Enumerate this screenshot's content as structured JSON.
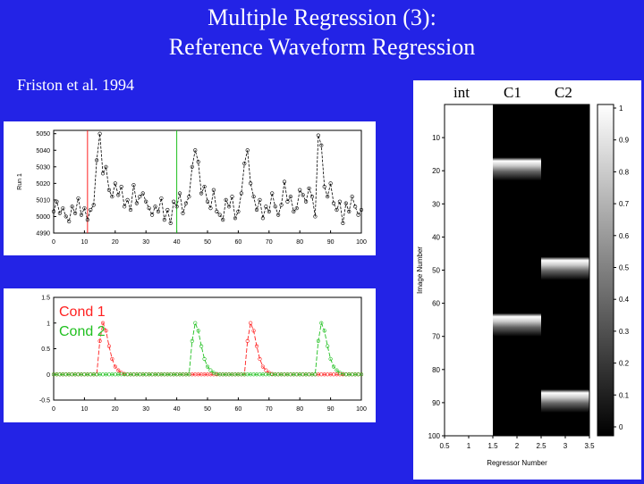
{
  "slide": {
    "title_line1": "Multiple Regression (3):",
    "title_line2": "Reference Waveform Regression",
    "citation": "Friston et al. 1994",
    "colors": {
      "background": "#2323e6",
      "text": "#ffffff",
      "cond1": "#ff2020",
      "cond2": "#20c020"
    }
  },
  "design_matrix": {
    "column_headers": [
      "int",
      "C1",
      "C2"
    ]
  },
  "chart_data": [
    {
      "type": "line",
      "xlim": [
        0,
        100
      ],
      "ylim": [
        4990,
        5052
      ],
      "ylabel": "Run 1",
      "x_ticks": [
        "0",
        "10",
        "20",
        "30",
        "40",
        "50",
        "60",
        "70",
        "80",
        "90",
        "100"
      ],
      "y_ticks": [
        "4990",
        "5000",
        "5010",
        "5020",
        "5030",
        "5040",
        "5050"
      ],
      "vlines": [
        {
          "x": 11,
          "color": "#ff2020"
        },
        {
          "x": 40,
          "color": "#20c020"
        }
      ],
      "series": [
        {
          "values": [
            5003,
            5009,
            5002,
            5005,
            5000,
            4997,
            5006,
            5002,
            5011,
            5001,
            5005,
            4998,
            5004,
            5007,
            5034,
            5050,
            5026,
            5030,
            5016,
            5012,
            5020,
            5013,
            5018,
            5006,
            5010,
            5004,
            5019,
            5008,
            5012,
            5014,
            5009,
            5005,
            5001,
            5006,
            5003,
            5011,
            4998,
            5004,
            4996,
            5009,
            5006,
            5014,
            5002,
            5008,
            5012,
            5030,
            5040,
            5033,
            5014,
            5018,
            5009,
            5005,
            5016,
            5003,
            5001,
            4998,
            5010,
            5006,
            5012,
            4999,
            5003,
            5014,
            5032,
            5040,
            5020,
            5012,
            5004,
            5010,
            4999,
            5006,
            5003,
            5014,
            5006,
            5001,
            5007,
            5021,
            5009,
            5012,
            5003,
            5005,
            5016,
            5013,
            5009,
            5017,
            5012,
            5000,
            5049,
            5043,
            5018,
            5012,
            5020,
            5008,
            5004,
            5009,
            4996,
            5008,
            5003,
            5012,
            5006,
            5001,
            5004
          ]
        }
      ]
    },
    {
      "type": "line",
      "xlim": [
        0,
        100
      ],
      "ylim": [
        -0.5,
        1.5
      ],
      "x_ticks": [
        "0",
        "10",
        "20",
        "30",
        "40",
        "50",
        "60",
        "70",
        "80",
        "90",
        "100"
      ],
      "y_ticks": [
        "-0.5",
        "0",
        "0.5",
        "1",
        "1.5"
      ],
      "legend": [
        "Cond 1",
        "Cond 2"
      ],
      "series": [
        {
          "name": "Cond 1",
          "values": [
            0,
            0,
            0,
            0,
            0,
            0,
            0,
            0,
            0,
            0,
            0,
            0,
            0,
            0,
            0,
            0.65,
            1.0,
            0.85,
            0.55,
            0.3,
            0.15,
            0.08,
            0.03,
            0.01,
            0,
            0,
            0,
            0,
            0,
            0,
            0,
            0,
            0,
            0,
            0,
            0,
            0,
            0,
            0,
            0,
            0,
            0,
            0,
            0,
            0,
            0,
            0,
            0,
            0,
            0,
            0,
            0,
            0,
            0,
            0,
            0,
            0,
            0,
            0,
            0,
            0,
            0,
            0,
            0.65,
            1.0,
            0.85,
            0.55,
            0.3,
            0.15,
            0.08,
            0.03,
            0.01,
            0,
            0,
            0,
            0,
            0,
            0,
            0,
            0,
            0,
            0,
            0,
            0,
            0,
            0,
            0,
            0,
            0,
            0,
            0,
            0,
            0,
            0,
            0,
            0,
            0,
            0,
            0,
            0,
            0
          ]
        },
        {
          "name": "Cond 2",
          "values": [
            0,
            0,
            0,
            0,
            0,
            0,
            0,
            0,
            0,
            0,
            0,
            0,
            0,
            0,
            0,
            0,
            0,
            0,
            0,
            0,
            0,
            0,
            0,
            0,
            0,
            0,
            0,
            0,
            0,
            0,
            0,
            0,
            0,
            0,
            0,
            0,
            0,
            0,
            0,
            0,
            0,
            0,
            0,
            0,
            0,
            0.65,
            1.0,
            0.85,
            0.55,
            0.3,
            0.15,
            0.08,
            0.03,
            0.01,
            0,
            0,
            0,
            0,
            0,
            0,
            0,
            0,
            0,
            0,
            0,
            0,
            0,
            0,
            0,
            0,
            0,
            0,
            0,
            0,
            0,
            0,
            0,
            0,
            0,
            0,
            0,
            0,
            0,
            0,
            0,
            0,
            0.65,
            1.0,
            0.85,
            0.55,
            0.3,
            0.15,
            0.08,
            0.03,
            0.01,
            0,
            0,
            0,
            0,
            0,
            0
          ]
        }
      ]
    },
    {
      "type": "heatmap",
      "xlabel": "Regressor Number",
      "ylabel": "Image Number",
      "xlim": [
        0.5,
        3.5
      ],
      "ylim": [
        0,
        100
      ],
      "x_ticks": [
        "0.5",
        "1",
        "1.5",
        "2",
        "2.5",
        "3",
        "3.5"
      ],
      "y_ticks": [
        "10",
        "20",
        "30",
        "40",
        "50",
        "60",
        "70",
        "80",
        "90",
        "100"
      ],
      "colorbar_ticks": [
        "1",
        "0.9",
        "0.8",
        "0.7",
        "0.6",
        "0.5",
        "0.4",
        "0.3",
        "0.2",
        "0.1",
        "0"
      ],
      "columns": [
        {
          "name": "int",
          "constant": 1
        },
        {
          "name": "C1",
          "peaks": [
            17,
            64
          ]
        },
        {
          "name": "C2",
          "peaks": [
            47,
            87
          ]
        }
      ]
    }
  ]
}
